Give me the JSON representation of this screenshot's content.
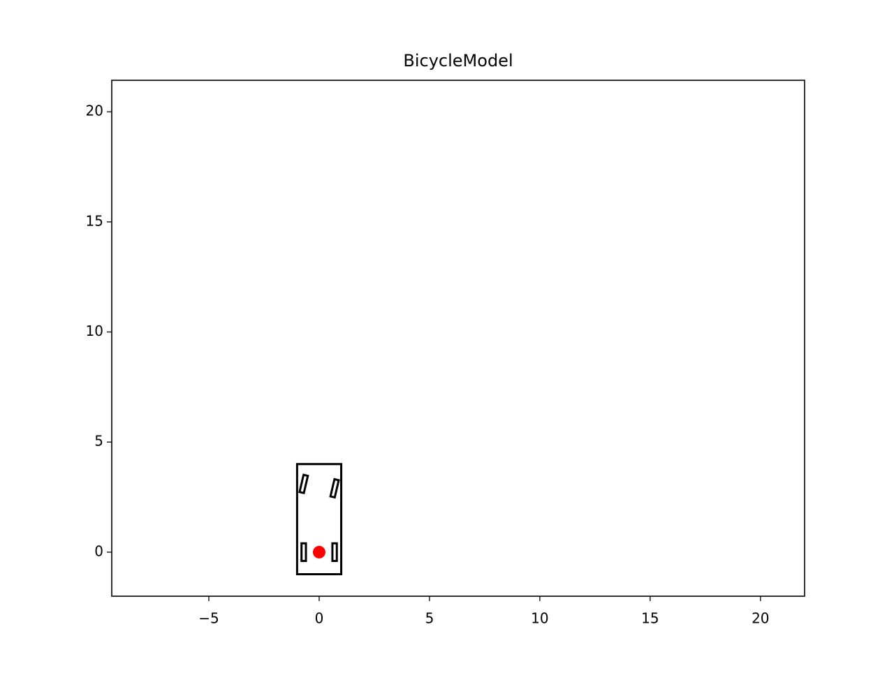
{
  "chart_data": {
    "type": "scatter",
    "title": "BicycleModel",
    "xlim": [
      -9.4,
      22
    ],
    "ylim": [
      -2,
      21.43
    ],
    "xticks": [
      {
        "value": -5,
        "label": "−5"
      },
      0,
      5,
      10,
      15,
      20
    ],
    "yticks": [
      0,
      5,
      10,
      15,
      20
    ],
    "polygons": [
      {
        "color": "#000000",
        "x": [
          -1,
          1,
          1,
          -1
        ],
        "y": [
          -1,
          -1,
          4,
          4
        ]
      },
      {
        "color": "#000000",
        "x": [
          -0.8,
          -0.6,
          -0.6,
          -0.8
        ],
        "y": [
          -0.4,
          -0.4,
          0.4,
          0.4
        ]
      },
      {
        "color": "#000000",
        "x": [
          0.6,
          0.8,
          0.8,
          0.6
        ],
        "y": [
          -0.4,
          -0.4,
          0.4,
          0.4
        ]
      },
      {
        "color": "#000000",
        "x": [
          -0.512,
          -0.706,
          -0.888,
          -0.694
        ],
        "y": [
          3.467,
          3.513,
          2.733,
          2.687
        ]
      },
      {
        "color": "#000000",
        "x": [
          0.888,
          0.694,
          0.512,
          0.706
        ],
        "y": [
          3.267,
          3.313,
          2.533,
          2.487
        ]
      }
    ],
    "points": {
      "color": "#ff0000",
      "x": [
        0
      ],
      "y": [
        0
      ]
    }
  }
}
